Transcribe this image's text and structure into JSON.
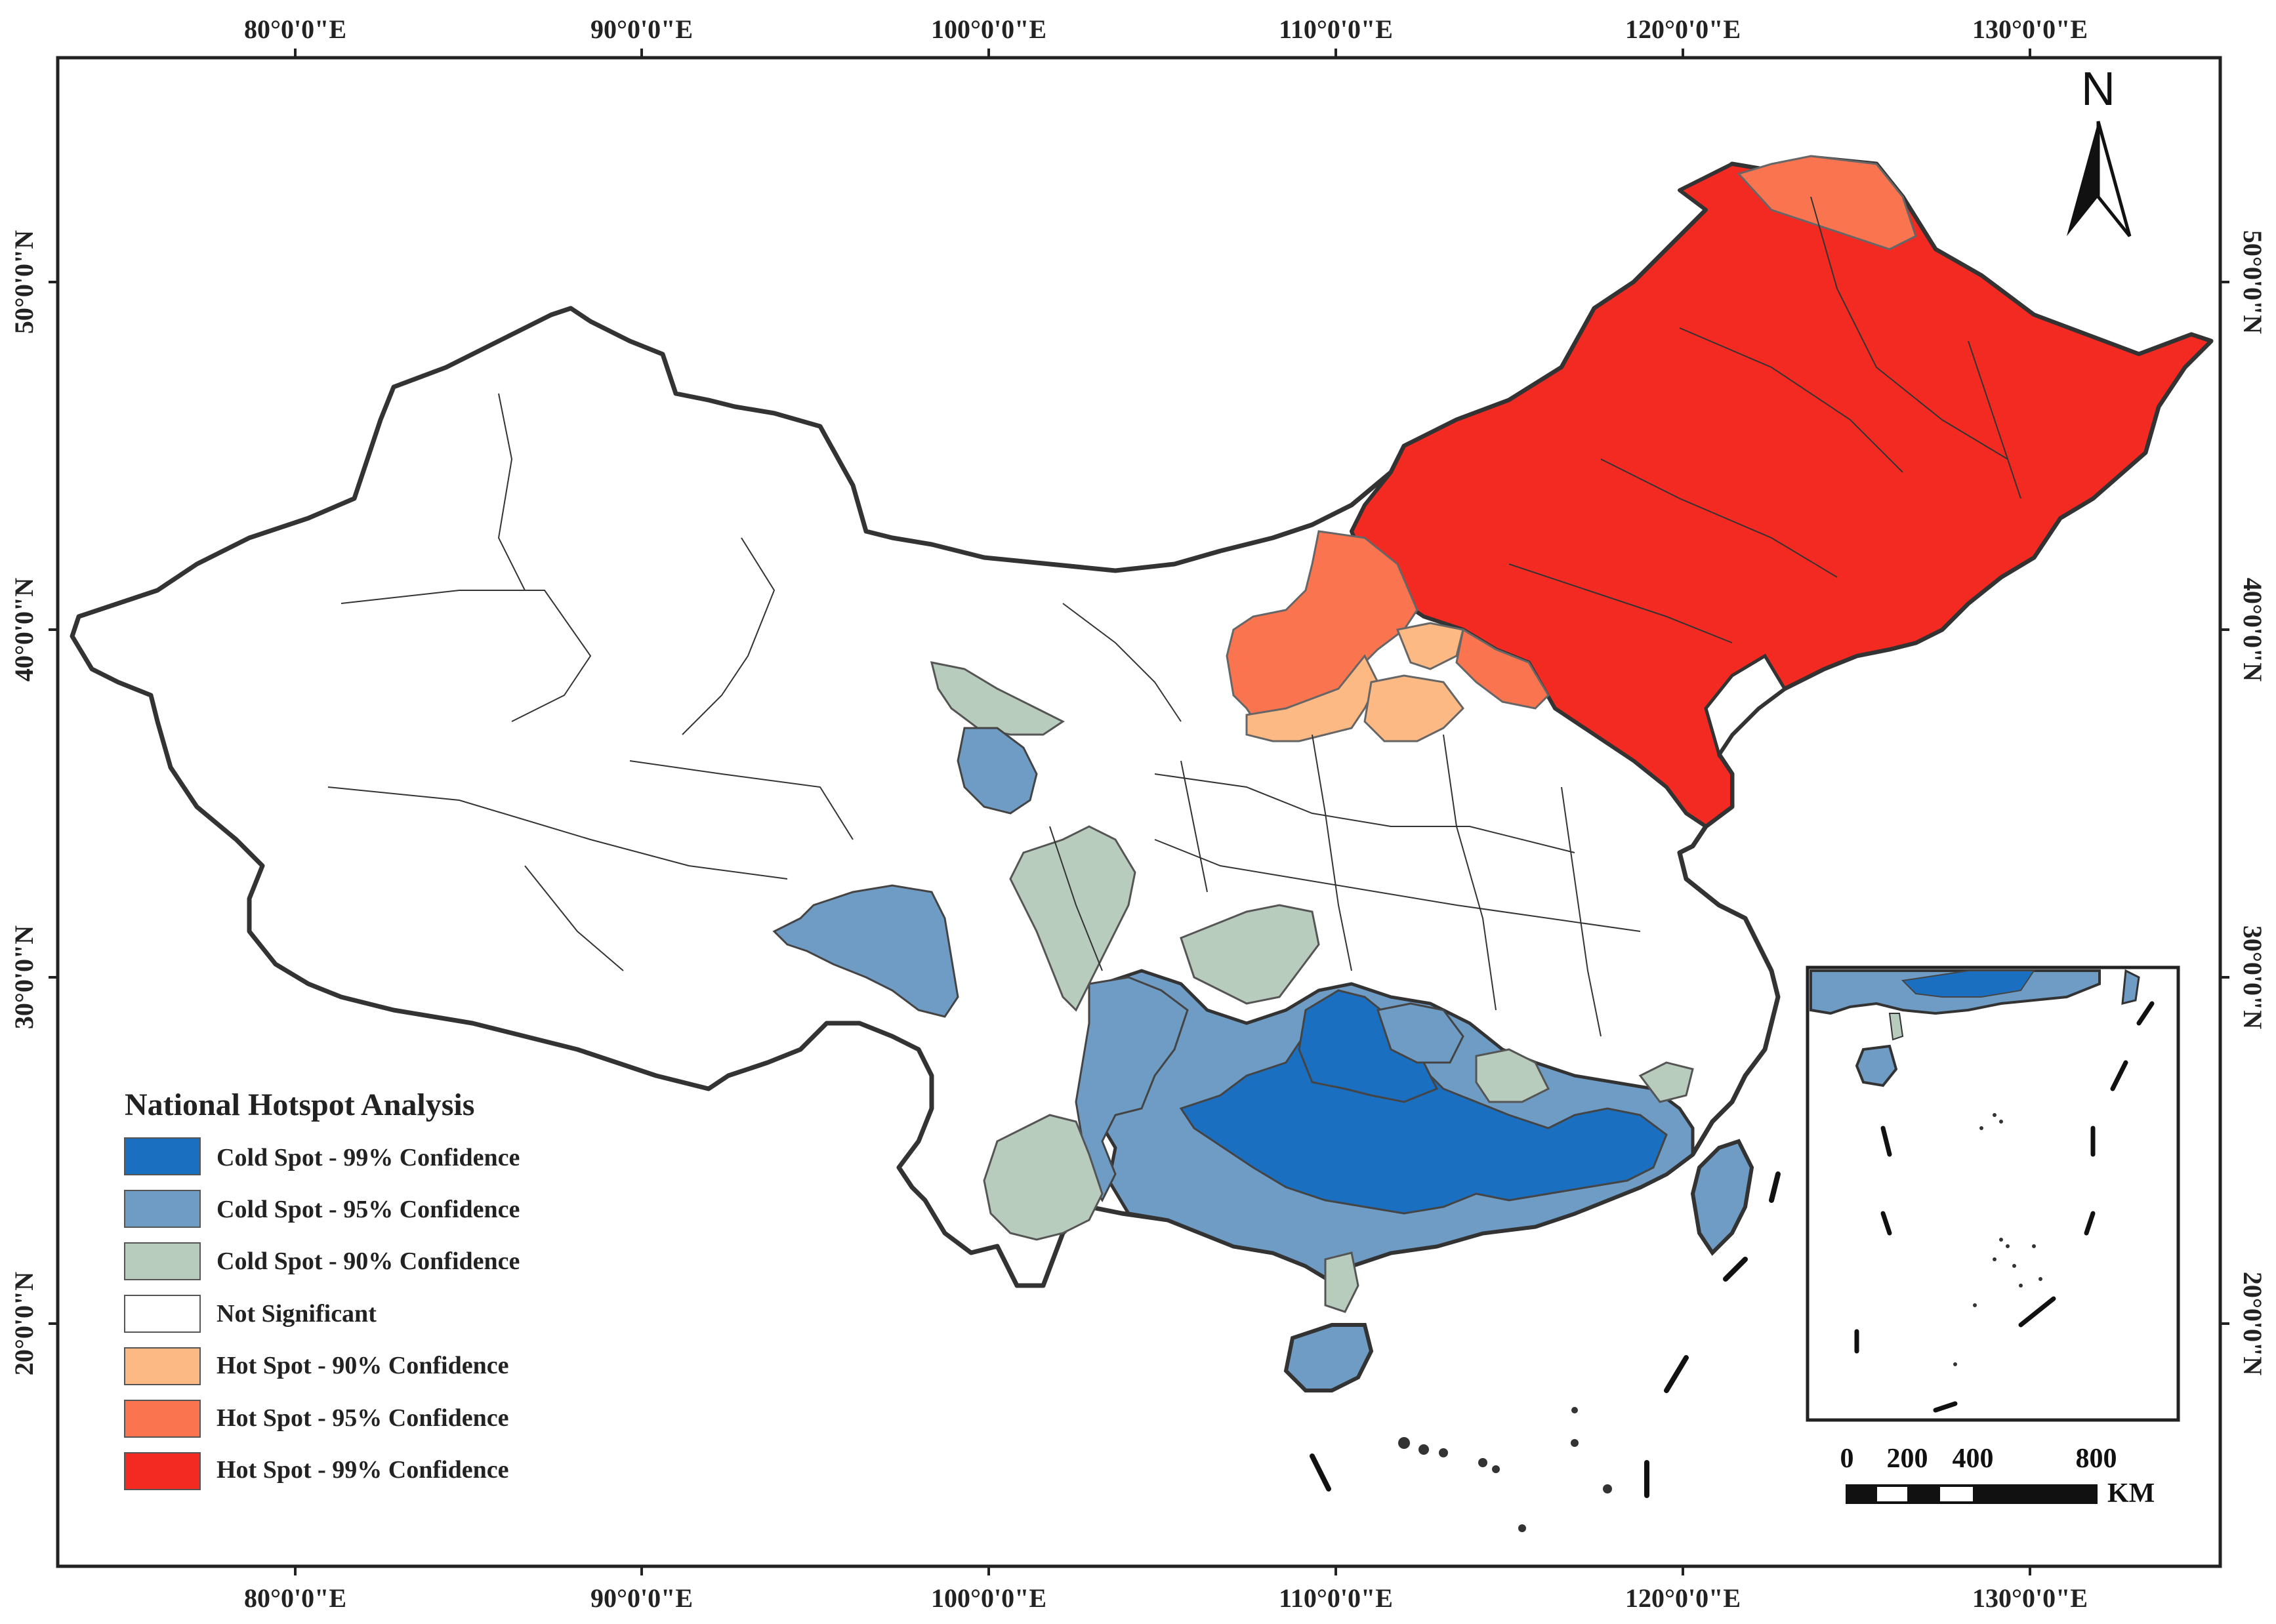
{
  "map": {
    "legend": {
      "title": "National Hotspot Analysis",
      "items": [
        {
          "label": "Cold Spot - 99% Confidence",
          "color": "#1b6fc0"
        },
        {
          "label": "Cold Spot - 95% Confidence",
          "color": "#6e9cc4"
        },
        {
          "label": "Cold Spot - 90% Confidence",
          "color": "#b8ccbe"
        },
        {
          "label": "Not Significant",
          "color": "#ffffff"
        },
        {
          "label": "Hot Spot - 90% Confidence",
          "color": "#fdb983"
        },
        {
          "label": "Hot Spot - 95% Confidence",
          "color": "#fb7450"
        },
        {
          "label": "Hot Spot - 99% Confidence",
          "color": "#f32a22"
        }
      ]
    },
    "lon_ticks": [
      "80°0'0\"E",
      "90°0'0\"E",
      "100°0'0\"E",
      "110°0'0\"E",
      "120°0'0\"E",
      "130°0'0\"E"
    ],
    "lat_ticks": [
      "50°0'0\"N",
      "40°0'0\"N",
      "30°0'0\"N",
      "20°0'0\"N"
    ],
    "north_label": "N",
    "scale_bar": {
      "labels": [
        "0",
        "200",
        "400",
        "800"
      ],
      "unit": "KM"
    }
  }
}
